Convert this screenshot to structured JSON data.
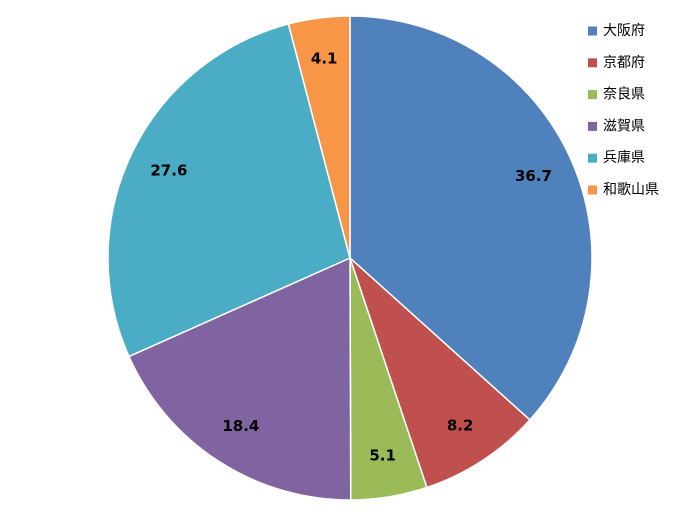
{
  "chart_data": {
    "type": "pie",
    "categories": [
      "大阪府",
      "京都府",
      "奈良県",
      "滋賀県",
      "兵庫県",
      "和歌山県"
    ],
    "values": [
      36.7,
      8.2,
      5.1,
      18.4,
      27.6,
      4.1
    ],
    "colors": [
      "#4f81bd",
      "#c0504d",
      "#9bbb59",
      "#8064a2",
      "#4bacc6",
      "#f79646"
    ],
    "legend": "top-right"
  }
}
